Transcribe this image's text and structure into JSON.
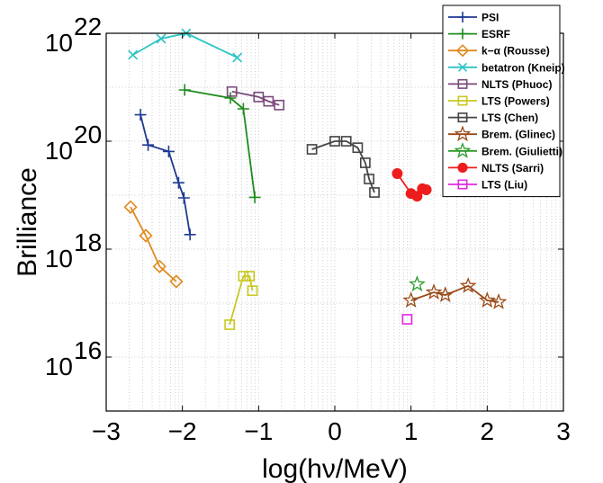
{
  "chart_data": {
    "type": "line",
    "xlabel": "log(hν/MeV)",
    "ylabel": "Brilliance",
    "xlim": [
      -3,
      3
    ],
    "ylim": [
      15,
      22
    ],
    "y_scale": "log10",
    "grid": true,
    "legend_position": "top-right",
    "x_ticks": [
      {
        "value": -3,
        "label": "−3"
      },
      {
        "value": -2,
        "label": "−2"
      },
      {
        "value": -1,
        "label": "−1"
      },
      {
        "value": 0,
        "label": "0"
      },
      {
        "value": 1,
        "label": "1"
      },
      {
        "value": 2,
        "label": "2"
      },
      {
        "value": 3,
        "label": "3"
      }
    ],
    "y_ticks": [
      {
        "value": 16,
        "base": "10",
        "exp": "16"
      },
      {
        "value": 18,
        "base": "10",
        "exp": "18"
      },
      {
        "value": 20,
        "base": "10",
        "exp": "20"
      },
      {
        "value": 22,
        "base": "10",
        "exp": "22"
      }
    ],
    "series": [
      {
        "name": "PSI",
        "color": "#1f3a93",
        "marker": "plus",
        "x": [
          -2.55,
          -2.45,
          -2.18,
          -2.05,
          -1.98,
          -1.9
        ],
        "y": [
          20.49,
          19.93,
          19.81,
          19.23,
          18.95,
          18.27
        ]
      },
      {
        "name": "ESRF",
        "color": "#1e8c1e",
        "marker": "plus",
        "x": [
          -1.97,
          -1.37,
          -1.2,
          -1.05
        ],
        "y": [
          20.95,
          20.8,
          20.6,
          18.96
        ]
      },
      {
        "name": "k−α (Rousse)",
        "color": "#e08a1e",
        "marker": "diamond",
        "x": [
          -2.68,
          -2.48,
          -2.3,
          -2.08
        ],
        "y": [
          18.78,
          18.25,
          17.68,
          17.4
        ]
      },
      {
        "name": "betatron (Kneip)",
        "color": "#2ec4c4",
        "marker": "x",
        "x": [
          -2.65,
          -2.28,
          -1.95,
          -1.28
        ],
        "y": [
          21.6,
          21.9,
          22.0,
          21.55
        ]
      },
      {
        "name": "NLTS (Phuoc)",
        "color": "#7a4a7a",
        "marker": "square",
        "x": [
          -1.35,
          -1.0,
          -0.87,
          -0.73
        ],
        "y": [
          20.92,
          20.82,
          20.74,
          20.67
        ]
      },
      {
        "name": "LTS (Powers)",
        "color": "#c8c820",
        "marker": "square",
        "x": [
          -1.38,
          -1.2,
          -1.12,
          -1.08
        ],
        "y": [
          16.6,
          17.5,
          17.5,
          17.23
        ]
      },
      {
        "name": "LTS (Chen)",
        "color": "#444444",
        "marker": "square",
        "x": [
          -0.3,
          0.0,
          0.15,
          0.3,
          0.4,
          0.45,
          0.52
        ],
        "y": [
          19.85,
          20.0,
          20.0,
          19.88,
          19.6,
          19.3,
          19.05
        ]
      },
      {
        "name": "Brem. (Glinec)",
        "color": "#9a4a16",
        "marker": "star",
        "x": [
          1.0,
          1.3,
          1.45,
          1.75,
          2.0,
          2.15
        ],
        "y": [
          17.05,
          17.2,
          17.15,
          17.32,
          17.05,
          17.02
        ]
      },
      {
        "name": "Brem. (Giulietti)",
        "color": "#2a9a2a",
        "marker": "star",
        "x": [
          1.08
        ],
        "y": [
          17.35
        ]
      },
      {
        "name": "NLTS (Sarri)",
        "color": "#ee1c1c",
        "marker": "circle",
        "x": [
          0.82,
          1.0,
          1.08,
          1.15,
          1.2
        ],
        "y": [
          19.4,
          19.03,
          18.98,
          19.12,
          19.1
        ]
      },
      {
        "name": "LTS (Liu)",
        "color": "#e02ae0",
        "marker": "square",
        "x": [
          0.95
        ],
        "y": [
          16.7
        ]
      }
    ]
  }
}
